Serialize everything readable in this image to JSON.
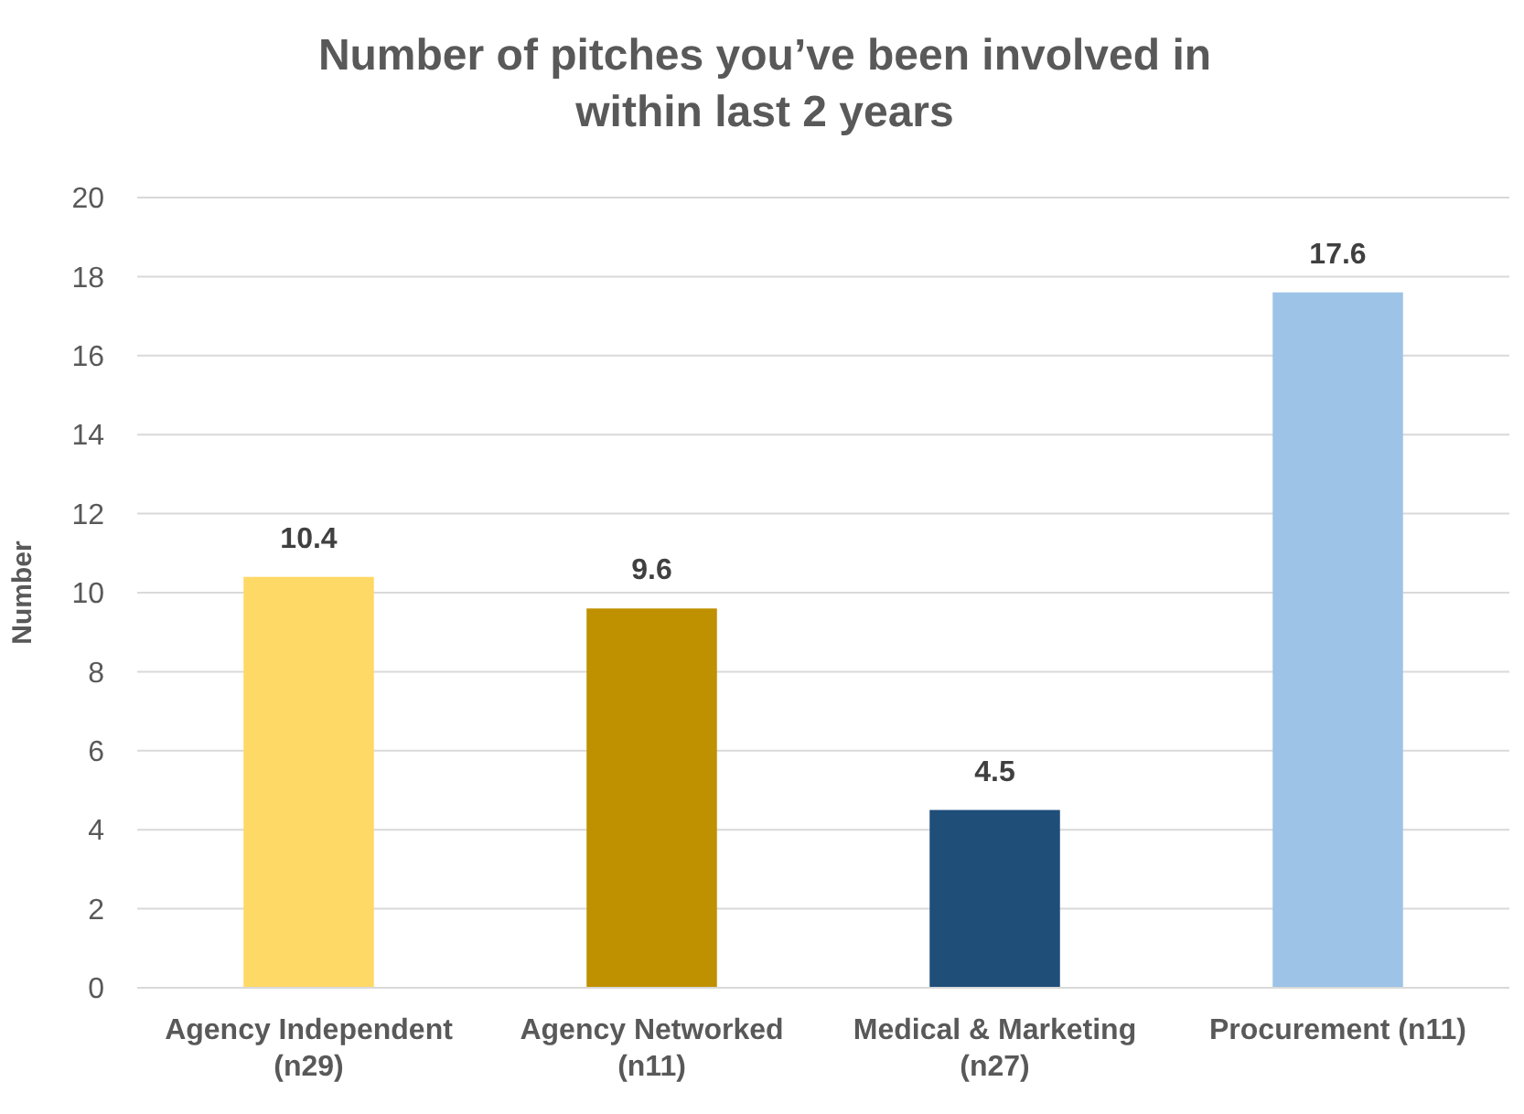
{
  "chart_data": {
    "type": "bar",
    "title": "Number of pitches you’ve been involved in within last 2 years",
    "ylabel": "Number",
    "categories": [
      "Agency Independent (n29)",
      "Agency Networked (n11)",
      "Medical & Marketing (n27)",
      "Procurement (n11)"
    ],
    "values": [
      10.4,
      9.6,
      4.5,
      17.6
    ],
    "colors": [
      "#ffd966",
      "#bf9000",
      "#1f4e79",
      "#9dc3e6"
    ],
    "ylim": [
      0,
      20
    ],
    "yticks": [
      0,
      2,
      4,
      6,
      8,
      10,
      12,
      14,
      16,
      18,
      20
    ],
    "grid": "y",
    "data_labels": true
  }
}
